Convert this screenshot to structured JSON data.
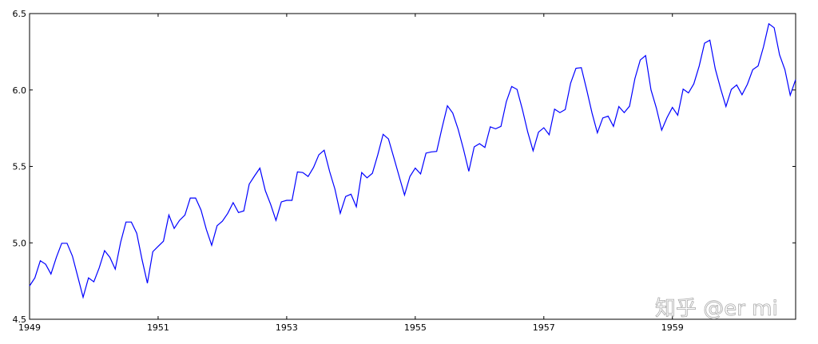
{
  "chart_data": {
    "type": "line",
    "color": "#0000ff",
    "x": [
      1949.0,
      1949.083,
      1949.167,
      1949.25,
      1949.333,
      1949.417,
      1949.5,
      1949.583,
      1949.667,
      1949.75,
      1949.833,
      1949.917,
      1950.0,
      1950.083,
      1950.167,
      1950.25,
      1950.333,
      1950.417,
      1950.5,
      1950.583,
      1950.667,
      1950.75,
      1950.833,
      1950.917,
      1951.0,
      1951.083,
      1951.167,
      1951.25,
      1951.333,
      1951.417,
      1951.5,
      1951.583,
      1951.667,
      1951.75,
      1951.833,
      1951.917,
      1952.0,
      1952.083,
      1952.167,
      1952.25,
      1952.333,
      1952.417,
      1952.5,
      1952.583,
      1952.667,
      1952.75,
      1952.833,
      1952.917,
      1953.0,
      1953.083,
      1953.167,
      1953.25,
      1953.333,
      1953.417,
      1953.5,
      1953.583,
      1953.667,
      1953.75,
      1953.833,
      1953.917,
      1954.0,
      1954.083,
      1954.167,
      1954.25,
      1954.333,
      1954.417,
      1954.5,
      1954.583,
      1954.667,
      1954.75,
      1954.833,
      1954.917,
      1955.0,
      1955.083,
      1955.167,
      1955.25,
      1955.333,
      1955.417,
      1955.5,
      1955.583,
      1955.667,
      1955.75,
      1955.833,
      1955.917,
      1956.0,
      1956.083,
      1956.167,
      1956.25,
      1956.333,
      1956.417,
      1956.5,
      1956.583,
      1956.667,
      1956.75,
      1956.833,
      1956.917,
      1957.0,
      1957.083,
      1957.167,
      1957.25,
      1957.333,
      1957.417,
      1957.5,
      1957.583,
      1957.667,
      1957.75,
      1957.833,
      1957.917,
      1958.0,
      1958.083,
      1958.167,
      1958.25,
      1958.333,
      1958.417,
      1958.5,
      1958.583,
      1958.667,
      1958.75,
      1958.833,
      1958.917,
      1959.0,
      1959.083,
      1959.167,
      1959.25,
      1959.333,
      1959.417,
      1959.5,
      1959.583,
      1959.667,
      1959.75,
      1959.833,
      1959.917,
      1960.0,
      1960.083,
      1960.167,
      1960.25,
      1960.333,
      1960.417,
      1960.5,
      1960.583,
      1960.667,
      1960.75,
      1960.833,
      1960.917
    ],
    "values": [
      4.718,
      4.771,
      4.883,
      4.86,
      4.796,
      4.905,
      4.997,
      4.997,
      4.913,
      4.779,
      4.644,
      4.771,
      4.745,
      4.836,
      4.949,
      4.905,
      4.828,
      5.004,
      5.136,
      5.136,
      5.063,
      4.89,
      4.736,
      4.942,
      4.977,
      5.011,
      5.182,
      5.094,
      5.147,
      5.182,
      5.293,
      5.293,
      5.215,
      5.088,
      4.984,
      5.112,
      5.142,
      5.193,
      5.263,
      5.198,
      5.209,
      5.384,
      5.438,
      5.489,
      5.342,
      5.252,
      5.147,
      5.268,
      5.278,
      5.278,
      5.464,
      5.46,
      5.434,
      5.493,
      5.576,
      5.606,
      5.468,
      5.352,
      5.193,
      5.303,
      5.318,
      5.236,
      5.46,
      5.425,
      5.455,
      5.576,
      5.71,
      5.68,
      5.557,
      5.434,
      5.313,
      5.434,
      5.489,
      5.451,
      5.587,
      5.595,
      5.598,
      5.753,
      5.897,
      5.849,
      5.743,
      5.613,
      5.468,
      5.628,
      5.649,
      5.624,
      5.759,
      5.746,
      5.762,
      5.924,
      6.023,
      6.004,
      5.872,
      5.724,
      5.602,
      5.724,
      5.753,
      5.707,
      5.875,
      5.852,
      5.872,
      6.045,
      6.142,
      6.146,
      6.001,
      5.849,
      5.72,
      5.817,
      5.829,
      5.762,
      5.892,
      5.852,
      5.894,
      6.075,
      6.196,
      6.225,
      6.001,
      5.883,
      5.737,
      5.82,
      5.886,
      5.835,
      6.006,
      5.981,
      6.04,
      6.157,
      6.306,
      6.326,
      6.138,
      6.009,
      5.892,
      6.004,
      6.033,
      5.969,
      6.038,
      6.133,
      6.157,
      6.282,
      6.433,
      6.407,
      6.23,
      6.133,
      5.966,
      6.068
    ],
    "xlim": [
      1949,
      1960.917
    ],
    "xticks": [
      1949,
      1951,
      1953,
      1955,
      1957,
      1959
    ],
    "ylim": [
      4.5,
      6.5
    ],
    "yticks": [
      {
        "value": 4.5,
        "label": "4.5"
      },
      {
        "value": 5,
        "label": "5.0"
      },
      {
        "value": 5.5,
        "label": "5.5"
      },
      {
        "value": 6,
        "label": "6.0"
      },
      {
        "value": 6.5,
        "label": "6.5"
      }
    ],
    "watermark": "知乎 @er mi"
  }
}
